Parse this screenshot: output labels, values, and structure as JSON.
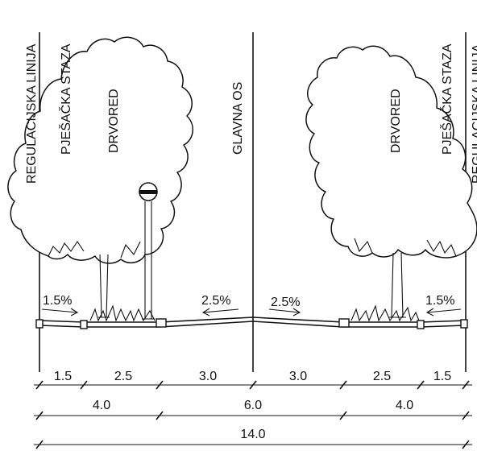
{
  "labels": {
    "regulation_line_left": "REGULACIJSKA LINIJA",
    "footpath_left": "PJEŠAČKA STAZA",
    "tree_row_left": "DRVORED",
    "main_axis": "GLAVNA OS",
    "tree_row_right": "DRVORED",
    "footpath_right": "PJEŠAČKA STAZA",
    "regulation_line_right": "REGULACIJSKA LINIJA"
  },
  "slopes": {
    "left_path": "1.5%",
    "left_road": "2.5%",
    "right_road": "2.5%",
    "right_path": "1.5%"
  },
  "dimensions": {
    "row1": [
      "1.5",
      "2.5",
      "3.0",
      "3.0",
      "2.5",
      "1.5"
    ],
    "row2": [
      "4.0",
      "6.0",
      "4.0"
    ],
    "row3": [
      "14.0"
    ]
  }
}
